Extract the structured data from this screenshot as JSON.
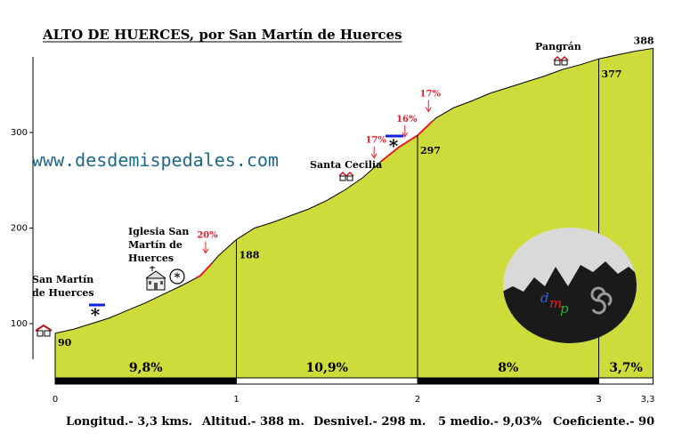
{
  "title": "ALTO DE HUERCES, por San Martín de Huerces",
  "watermark": "www.desdemispedales.com",
  "logo": {
    "letters": [
      "d",
      "m",
      "p"
    ],
    "colors": [
      "#3a5bd8",
      "#e0202a",
      "#2fae3a"
    ],
    "bg": "#d9d9d9"
  },
  "colors": {
    "profile_fill": "#cddc3a",
    "steep_line": "#e0202a",
    "arrow_blue": "#1020e0"
  },
  "chart_data": {
    "type": "area",
    "title": "ALTO DE HUERCES, por San Martín de Huerces",
    "xlabel": "",
    "ylabel": "",
    "xlim": [
      0,
      3.3
    ],
    "ylim": [
      60,
      400
    ],
    "x_ticks": [
      "0",
      "1",
      "2",
      "3",
      "3,3"
    ],
    "y_ticks": [
      "100",
      "200",
      "300"
    ],
    "profile": {
      "x": [
        0,
        0.1,
        0.2,
        0.3,
        0.4,
        0.5,
        0.6,
        0.7,
        0.8,
        0.85,
        0.9,
        1.0,
        1.1,
        1.2,
        1.3,
        1.4,
        1.5,
        1.6,
        1.7,
        1.8,
        1.9,
        2.0,
        2.1,
        2.2,
        2.3,
        2.4,
        2.5,
        2.6,
        2.7,
        2.8,
        2.9,
        3.0,
        3.1,
        3.2,
        3.3
      ],
      "y": [
        90,
        94,
        100,
        106,
        114,
        122,
        131,
        140,
        150,
        160,
        171,
        188,
        200,
        206,
        213,
        220,
        229,
        240,
        253,
        270,
        285,
        297,
        315,
        326,
        333,
        341,
        347,
        353,
        359,
        366,
        371,
        377,
        381,
        385,
        388
      ]
    },
    "km_elevations": [
      {
        "x": 0,
        "value": "90"
      },
      {
        "x": 1,
        "value": "188"
      },
      {
        "x": 2,
        "value": "297"
      },
      {
        "x": 3,
        "value": "377"
      },
      {
        "x": 3.3,
        "value": "388"
      }
    ],
    "segment_gradients": [
      "9,8%",
      "10,9%",
      "8%",
      "3,7%"
    ],
    "steep_sections": [
      {
        "label": "20%",
        "x": [
          0.78,
          0.86
        ]
      },
      {
        "label": "17%",
        "x": [
          1.8,
          1.93
        ]
      },
      {
        "label": "16%",
        "x": [
          1.93,
          2.0
        ]
      },
      {
        "label": "17%",
        "x": [
          2.0,
          2.08
        ]
      }
    ],
    "places": [
      {
        "lines": [
          "San Martín",
          "de Huerces"
        ],
        "x": 0
      },
      {
        "lines": [
          "Iglesia San",
          "Martín de",
          "Huerces"
        ],
        "x": 0.55
      },
      {
        "lines": [
          "Santa Cecilia"
        ],
        "x": 1.62
      },
      {
        "lines": [
          "Pangrán"
        ],
        "x": 2.75
      }
    ]
  },
  "footer": {
    "longitud": "Longitud.- 3,3 kms.",
    "altitud": "Altitud.- 388 m.",
    "desnivel": "Desnivel.- 298 m.",
    "medio": "5 medio.- 9,03%",
    "coeficiente": "Coeficiente.- 90"
  }
}
